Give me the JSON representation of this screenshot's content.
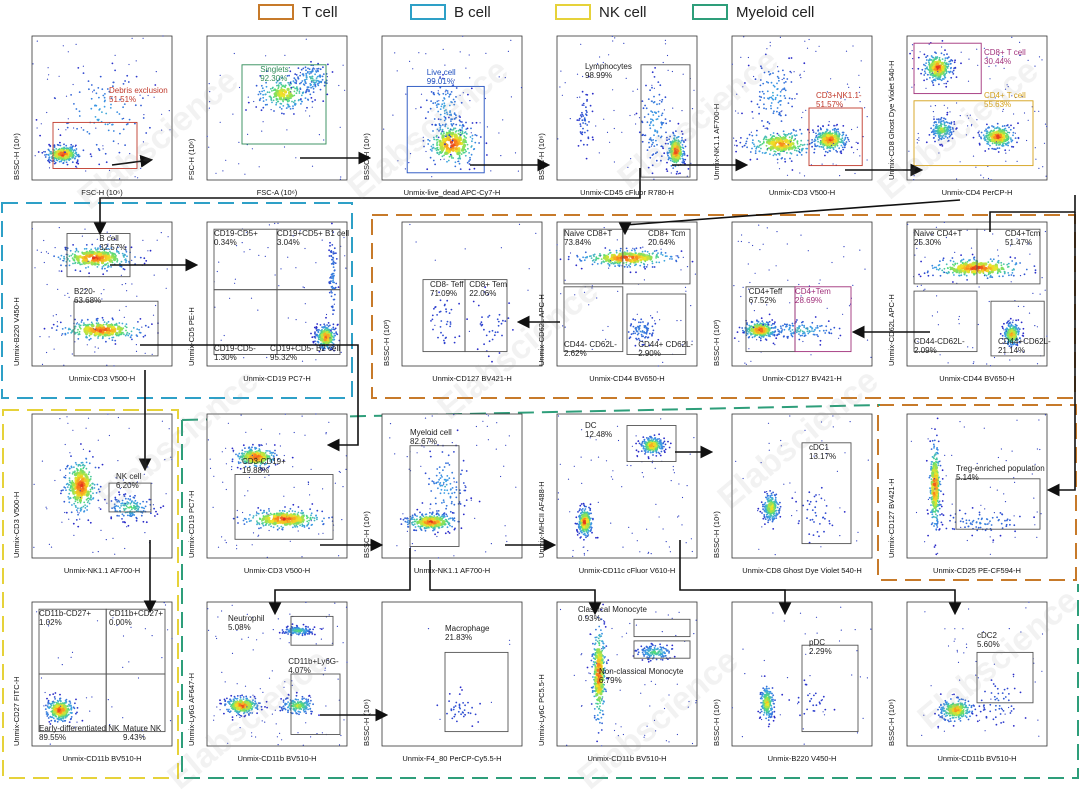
{
  "legend": [
    {
      "label": "T cell",
      "color": "#c77a2a"
    },
    {
      "label": "B cell",
      "color": "#2ea0c7"
    },
    {
      "label": "NK cell",
      "color": "#e6d23a"
    },
    {
      "label": "Myeloid cell",
      "color": "#2e9e7a"
    }
  ],
  "watermark": "Elabscience",
  "panels": [
    {
      "id": "p1",
      "x": "FSC-H (10⁶)",
      "y": "BSSC-H (10⁶)",
      "cloud": "fsc",
      "gates": [
        {
          "label": "Debris exclusion\n51.51%",
          "color": "#c0392b"
        }
      ]
    },
    {
      "id": "p2",
      "x": "FSC-A (10⁶)",
      "y": "FSC-H (10⁶)",
      "cloud": "diag",
      "gates": [
        {
          "label": "Singlets\n92.30%",
          "color": "#2e8b57"
        }
      ]
    },
    {
      "id": "p3",
      "x": "Unmix-live_dead APC-Cy7-H",
      "y": "BSSC-H (10⁶)",
      "cloud": "blob",
      "gates": [
        {
          "label": "Live cell\n99.01%",
          "color": "#1f4fbf"
        }
      ]
    },
    {
      "id": "p4",
      "x": "Unmix-CD45 cFluor R780-H",
      "y": "BSSC-H (10⁶)",
      "cloud": "right",
      "gates": [
        {
          "label": "Lymphocytes\n98.99%",
          "color": "#222"
        }
      ]
    },
    {
      "id": "p5",
      "x": "Unmix-CD3 V500-H",
      "y": "Unmix-NK1.1 AF700-H",
      "cloud": "wide",
      "gates": [
        {
          "label": "CD3+NK1.1-\n51.57%",
          "color": "#c0392b"
        }
      ]
    },
    {
      "id": "p6",
      "x": "Unmix-CD4 PerCP-H",
      "y": "Unmix-CD8 Ghost Dye Violet 540-H",
      "cloud": "quad2",
      "gates": [
        {
          "label": "CD8+ T cell\n30.44%",
          "color": "#a0307a"
        },
        {
          "label": "CD4+ T cell\n55.63%",
          "color": "#d4a017"
        }
      ]
    },
    {
      "id": "p7",
      "x": "Unmix-CD3 V500-H",
      "y": "Unmix-B220 V450-H",
      "cloud": "bands",
      "gates": [
        {
          "label": "B cell\n32.57%",
          "color": "#222"
        },
        {
          "label": "B220-\n63.68%",
          "color": "#222"
        }
      ]
    },
    {
      "id": "p8",
      "x": "Unmix-CD19 PC7-H",
      "y": "Unmix-CD5 PE-H",
      "cloud": "lower",
      "gates": [
        {
          "label": "CD19-CD5+\n0.34%",
          "color": "#222"
        },
        {
          "label": "CD19+CD5+ B1 cell\n3.04%",
          "color": "#222"
        },
        {
          "label": "CD19-CD5-\n1.30%",
          "color": "#222"
        },
        {
          "label": "CD19+CD5- B2 cell\n95.32%",
          "color": "#222"
        }
      ]
    },
    {
      "id": "p9",
      "x": "Unmix-CD127 BV421-H",
      "y": "BSSC-H (10³)",
      "cloud": "sparse",
      "gates": [
        {
          "label": "CD8- Teff\n71.09%",
          "color": "#222"
        },
        {
          "label": "CD8+ Tem\n22.06%",
          "color": "#222"
        }
      ]
    },
    {
      "id": "p10",
      "x": "Unmix-CD44 BV650-H",
      "y": "Unmix-CD62L APC-H",
      "cloud": "topband",
      "gates": [
        {
          "label": "Naive CD8+T\n73.84%",
          "color": "#222"
        },
        {
          "label": "CD8+ Tcm\n20.64%",
          "color": "#222"
        },
        {
          "label": "CD44- CD62L-\n2.62%",
          "color": "#222"
        },
        {
          "label": "CD44+ CD62L-\n2.90%",
          "color": "#222"
        }
      ]
    },
    {
      "id": "p11",
      "x": "Unmix-CD127 BV421-H",
      "y": "BSSC-H (10³)",
      "cloud": "flat",
      "gates": [
        {
          "label": "CD4+Teff\n67.52%",
          "color": "#222"
        },
        {
          "label": "CD4+Tem\n28.69%",
          "color": "#a0307a"
        }
      ]
    },
    {
      "id": "p12",
      "x": "Unmix-CD44 BV650-H",
      "y": "Unmix-CD62L APC-H",
      "cloud": "topband2",
      "gates": [
        {
          "label": "Naive CD4+T\n25.30%",
          "color": "#222"
        },
        {
          "label": "CD4+Tcm\n51.47%",
          "color": "#222"
        },
        {
          "label": "CD44-CD62L-\n2.09%",
          "color": "#222"
        },
        {
          "label": "CD44+CD62L-\n21.14%",
          "color": "#222"
        }
      ]
    },
    {
      "id": "p13",
      "x": "Unmix-NK1.1 AF700-H",
      "y": "Unmix-CD3 V500-H",
      "cloud": "nk",
      "gates": [
        {
          "label": "NK cell\n6.20%",
          "color": "#222"
        }
      ]
    },
    {
      "id": "p14",
      "x": "Unmix-CD3 V500-H",
      "y": "Unmix-CD19 PC7-H",
      "cloud": "cd3cd19",
      "gates": [
        {
          "label": "CD3-CD19+\n19.88%",
          "color": "#222"
        }
      ]
    },
    {
      "id": "p15",
      "x": "Unmix-NK1.1 AF700-H",
      "y": "BSSC-H (10⁶)",
      "cloud": "myeloid",
      "gates": [
        {
          "label": "Myeloid cell\n82.67%",
          "color": "#222"
        }
      ]
    },
    {
      "id": "p16",
      "x": "Unmix-CD11c cFluor V610-H",
      "y": "Unmix-MHCII AF488-H",
      "cloud": "dc",
      "gates": [
        {
          "label": "DC\n12.48%",
          "color": "#222"
        }
      ]
    },
    {
      "id": "p17",
      "x": "Unmix-CD8 Ghost Dye Violet 540-H",
      "y": "BSSC-H (10⁶)",
      "cloud": "sparse2",
      "gates": [
        {
          "label": "cDC1\n13.17%",
          "color": "#222"
        }
      ]
    },
    {
      "id": "p18",
      "x": "Unmix-CD25 PE-CF594-H",
      "y": "Unmix-CD127 BV421-H",
      "cloud": "treg",
      "gates": [
        {
          "label": "Treg-enriched population\n5.14%",
          "color": "#222"
        }
      ]
    },
    {
      "id": "p19",
      "x": "Unmix-CD11b BV510-H",
      "y": "Unmix-CD27 FITC-H",
      "cloud": "corner",
      "gates": [
        {
          "label": "CD11b-CD27+\n1.02%",
          "color": "#222"
        },
        {
          "label": "CD11b+CD27+\n0.00%",
          "color": "#222"
        },
        {
          "label": "Early-differentiated NK\n89.55%",
          "color": "#222"
        },
        {
          "label": "Mature NK\n9.43%",
          "color": "#222"
        }
      ]
    },
    {
      "id": "p20",
      "x": "Unmix-CD11b BV510-H",
      "y": "Unmix-Ly6G AF647-H",
      "cloud": "ly6g",
      "gates": [
        {
          "label": "Neutrophil\n5.08%",
          "color": "#222"
        },
        {
          "label": "CD11b+Ly6G-\n4.07%",
          "color": "#222"
        }
      ]
    },
    {
      "id": "p21",
      "x": "Unmix-F4_80 PerCP-Cy5.5-H",
      "y": "BSSC-H (10⁶)",
      "cloud": "macro",
      "gates": [
        {
          "label": "Macrophage\n21.83%",
          "color": "#222"
        }
      ]
    },
    {
      "id": "p22",
      "x": "Unmix-CD11b BV510-H",
      "y": "Unmix-Ly6C PC5.5-H",
      "cloud": "mono",
      "gates": [
        {
          "label": "Classical Monocyte\n0.93%",
          "color": "#222"
        },
        {
          "label": "Non-classical Monocyte\n6.79%",
          "color": "#222"
        }
      ]
    },
    {
      "id": "p23",
      "x": "Unmix-B220 V450-H",
      "y": "BSSC-H (10⁶)",
      "cloud": "sparse3",
      "gates": [
        {
          "label": "pDC\n2.29%",
          "color": "#222"
        }
      ]
    },
    {
      "id": "p24",
      "x": "Unmix-CD11b BV510-H",
      "y": "BSSC-H (10⁶)",
      "cloud": "cdc2",
      "gates": [
        {
          "label": "cDC2\n5.60%",
          "color": "#222"
        }
      ]
    }
  ]
}
